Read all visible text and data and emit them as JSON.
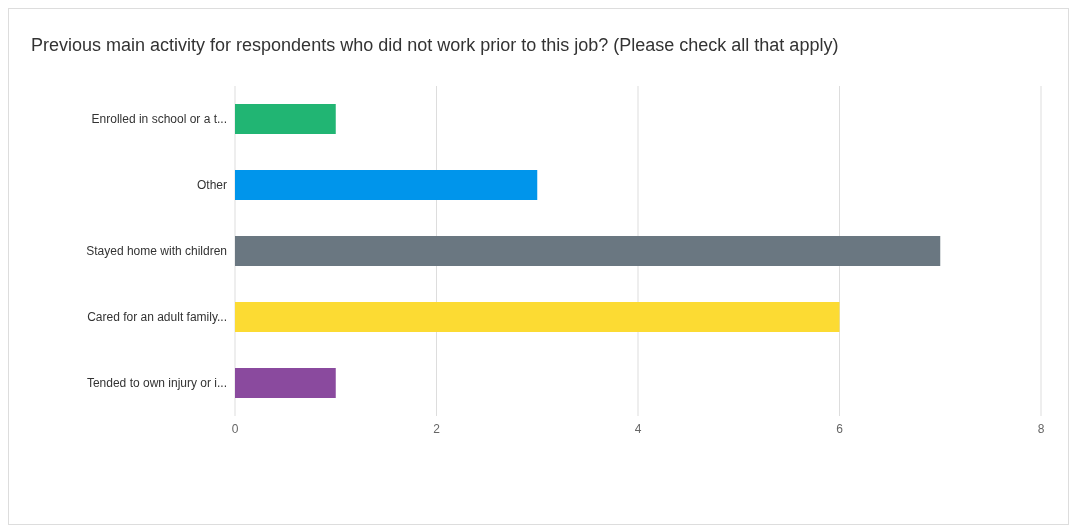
{
  "chart_data": {
    "type": "bar",
    "orientation": "horizontal",
    "title": "Previous main activity for respondents who did not work prior to this job? (Please check all that apply)",
    "categories": [
      "Enrolled in school or a t...",
      "Other",
      "Stayed home with children",
      "Cared for an adult family...",
      "Tended to own injury or i..."
    ],
    "values": [
      1,
      3,
      7,
      6,
      1
    ],
    "colors": [
      "#21b573",
      "#0095eb",
      "#6a7781",
      "#fcdb33",
      "#8a4a9e"
    ],
    "xlim": [
      0,
      8
    ],
    "xticks": [
      0,
      2,
      4,
      6,
      8
    ],
    "grid": "x"
  }
}
